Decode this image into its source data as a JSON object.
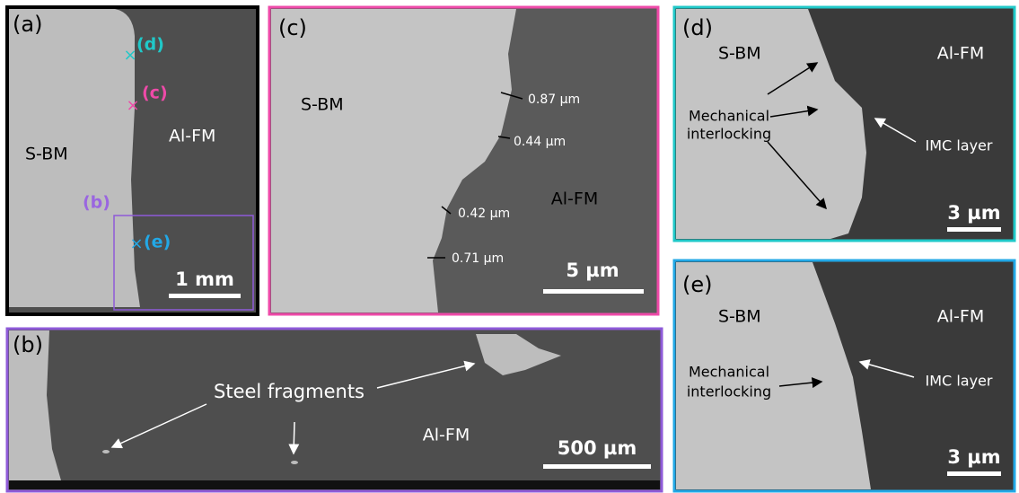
{
  "panels": {
    "a": {
      "label": "(a)",
      "sbm": "S-BM",
      "alfm": "Al-FM",
      "scale": "1 mm",
      "markers": {
        "d": "(d)",
        "c": "(c)",
        "b": "(b)",
        "e": "(e)"
      }
    },
    "b": {
      "label": "(b)",
      "fragments": "Steel fragments",
      "alfm": "Al-FM",
      "scale": "500 µm"
    },
    "c": {
      "label": "(c)",
      "sbm": "S-BM",
      "alfm": "Al-FM",
      "scale": "5 µm",
      "measurements": [
        "0.87 µm",
        "0.44 µm",
        "0.42 µm",
        "0.71 µm"
      ]
    },
    "d": {
      "label": "(d)",
      "sbm": "S-BM",
      "alfm": "Al-FM",
      "interlock": [
        "Mechanical",
        "interlocking"
      ],
      "imc": "IMC layer",
      "scale": "3 µm"
    },
    "e": {
      "label": "(e)",
      "sbm": "S-BM",
      "alfm": "Al-FM",
      "interlock": [
        "Mechanical",
        "interlocking"
      ],
      "imc": "IMC layer",
      "scale": "3 µm"
    }
  }
}
